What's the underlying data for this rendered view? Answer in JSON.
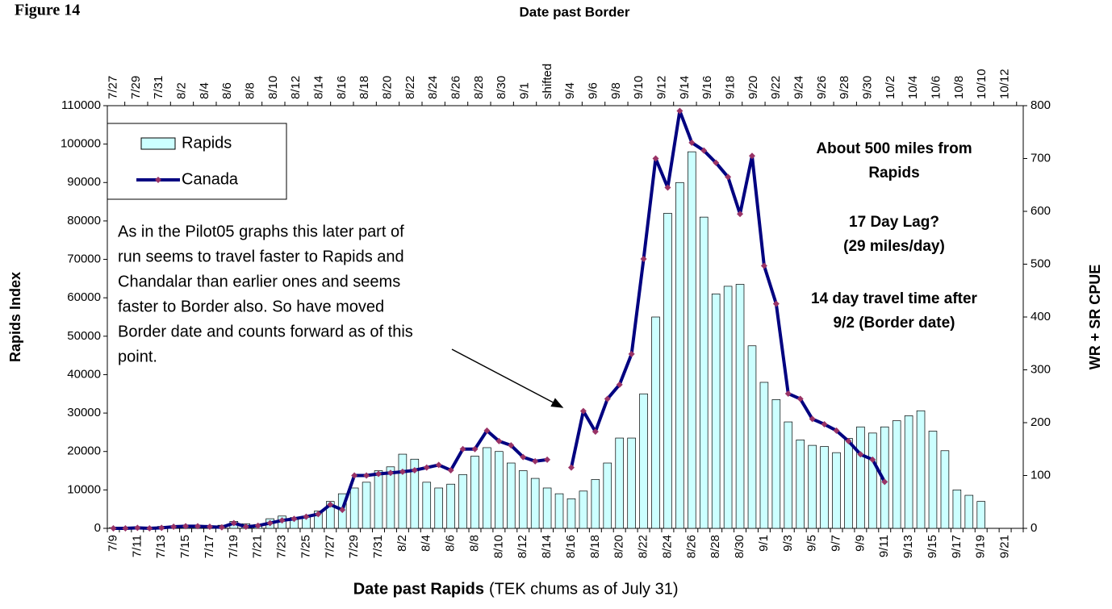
{
  "chart_data": {
    "type": "bar-line",
    "figure_label": "Figure 14",
    "top_axis_title": "Date past Border",
    "x_label": "Date past Rapids",
    "x_label_note": "(TEK chums as of July 31)",
    "y_label": "Rapids  Index",
    "y2_label": "WR + SR CPUE",
    "categories": [
      "7/9",
      null,
      "7/11",
      null,
      "7/13",
      null,
      "7/15",
      null,
      "7/17",
      null,
      "7/19",
      null,
      "7/21",
      null,
      "7/23",
      null,
      "7/25",
      null,
      "7/27",
      null,
      "7/29",
      null,
      "7/31",
      null,
      "8/2",
      null,
      "8/4",
      null,
      "8/6",
      null,
      "8/8",
      null,
      "8/10",
      null,
      "8/12",
      null,
      "8/14",
      null,
      "8/16",
      null,
      "8/18",
      null,
      "8/20",
      null,
      "8/22",
      null,
      "8/24",
      null,
      "8/26",
      null,
      "8/28",
      null,
      "8/30",
      null,
      "9/1",
      null,
      "9/3",
      null,
      "9/5",
      null,
      "9/7",
      null,
      "9/9",
      null,
      "9/11",
      null,
      "9/13",
      null,
      "9/15",
      null,
      "9/17",
      null,
      "9/19",
      null,
      "9/21",
      null
    ],
    "top_categories": [
      "7/27",
      "7/29",
      "7/31",
      "8/2",
      "8/4",
      "8/6",
      "8/8",
      "8/10",
      "8/12",
      "8/14",
      "8/16",
      "8/18",
      "8/20",
      "8/22",
      "8/24",
      "8/26",
      "8/28",
      "8/30",
      "9/1",
      "shifted",
      "9/4",
      "9/6",
      "9/8",
      "9/10",
      "9/12",
      "9/14",
      "9/16",
      "9/18",
      "9/20",
      "9/22",
      "9/24",
      "9/26",
      "9/28",
      "9/30",
      "10/2",
      "10/4",
      "10/6",
      "10/8",
      "10/10",
      "10/12"
    ],
    "series": [
      {
        "name": "Rapids",
        "type": "bar",
        "color": "#ccffff",
        "values": [
          200,
          200,
          300,
          300,
          500,
          500,
          700,
          500,
          600,
          800,
          1800,
          1200,
          1000,
          2500,
          3200,
          2800,
          3000,
          4500,
          7000,
          9000,
          10500,
          12000,
          15000,
          16000,
          19300,
          18000,
          12000,
          10500,
          11500,
          14000,
          18800,
          21000,
          20000,
          17000,
          15000,
          13000,
          10500,
          9000,
          7700,
          9700,
          12700,
          17000,
          23500,
          23500,
          35000,
          55000,
          82000,
          90000,
          98000,
          81000,
          61000,
          63000,
          63500,
          47500,
          38000,
          33500,
          27700,
          23000,
          21600,
          21300,
          19700,
          23400,
          26400,
          24800,
          26400,
          28000,
          29300,
          30600,
          25300,
          20200,
          10000,
          8600,
          7000,
          0,
          0,
          0
        ]
      },
      {
        "name": "Canada",
        "type": "line",
        "axis": "y2",
        "color": "#000080",
        "marker_color": "#993366",
        "values": [
          0,
          0,
          1,
          0,
          1,
          3,
          4,
          4,
          3,
          2,
          10,
          3,
          5,
          10,
          15,
          18,
          22,
          27,
          45,
          35,
          100,
          100,
          103,
          105,
          107,
          110,
          115,
          120,
          110,
          150,
          150,
          185,
          165,
          157,
          135,
          127,
          130,
          null,
          115,
          222,
          183,
          245,
          272,
          330,
          510,
          700,
          645,
          790,
          730,
          715,
          692,
          665,
          595,
          705,
          497,
          425,
          255,
          245,
          207,
          197,
          185,
          165,
          140,
          130,
          88,
          null,
          null,
          null,
          null,
          null,
          null,
          null,
          null,
          null,
          null,
          null
        ]
      }
    ],
    "ylim": [
      0,
      110000
    ],
    "yticks": [
      0,
      10000,
      20000,
      30000,
      40000,
      50000,
      60000,
      70000,
      80000,
      90000,
      100000,
      110000
    ],
    "y2lim": [
      0,
      800
    ],
    "y2ticks": [
      0,
      100,
      200,
      300,
      400,
      500,
      600,
      700,
      800
    ],
    "legend": "upper left",
    "annotations": {
      "note_left": [
        "As in the Pilot05 graphs this later part of",
        "run seems to travel faster to Rapids and",
        "Chandalar than earlier ones and seems",
        "faster to Border also. So have moved",
        "Border date and counts forward as of this",
        "point."
      ],
      "note_right_1": [
        "About 500 miles from",
        "Rapids"
      ],
      "note_right_2": [
        "17 Day Lag?",
        "(29 miles/day)"
      ],
      "note_right_3": [
        "14 day travel time after",
        "9/2 (Border date)"
      ]
    }
  }
}
